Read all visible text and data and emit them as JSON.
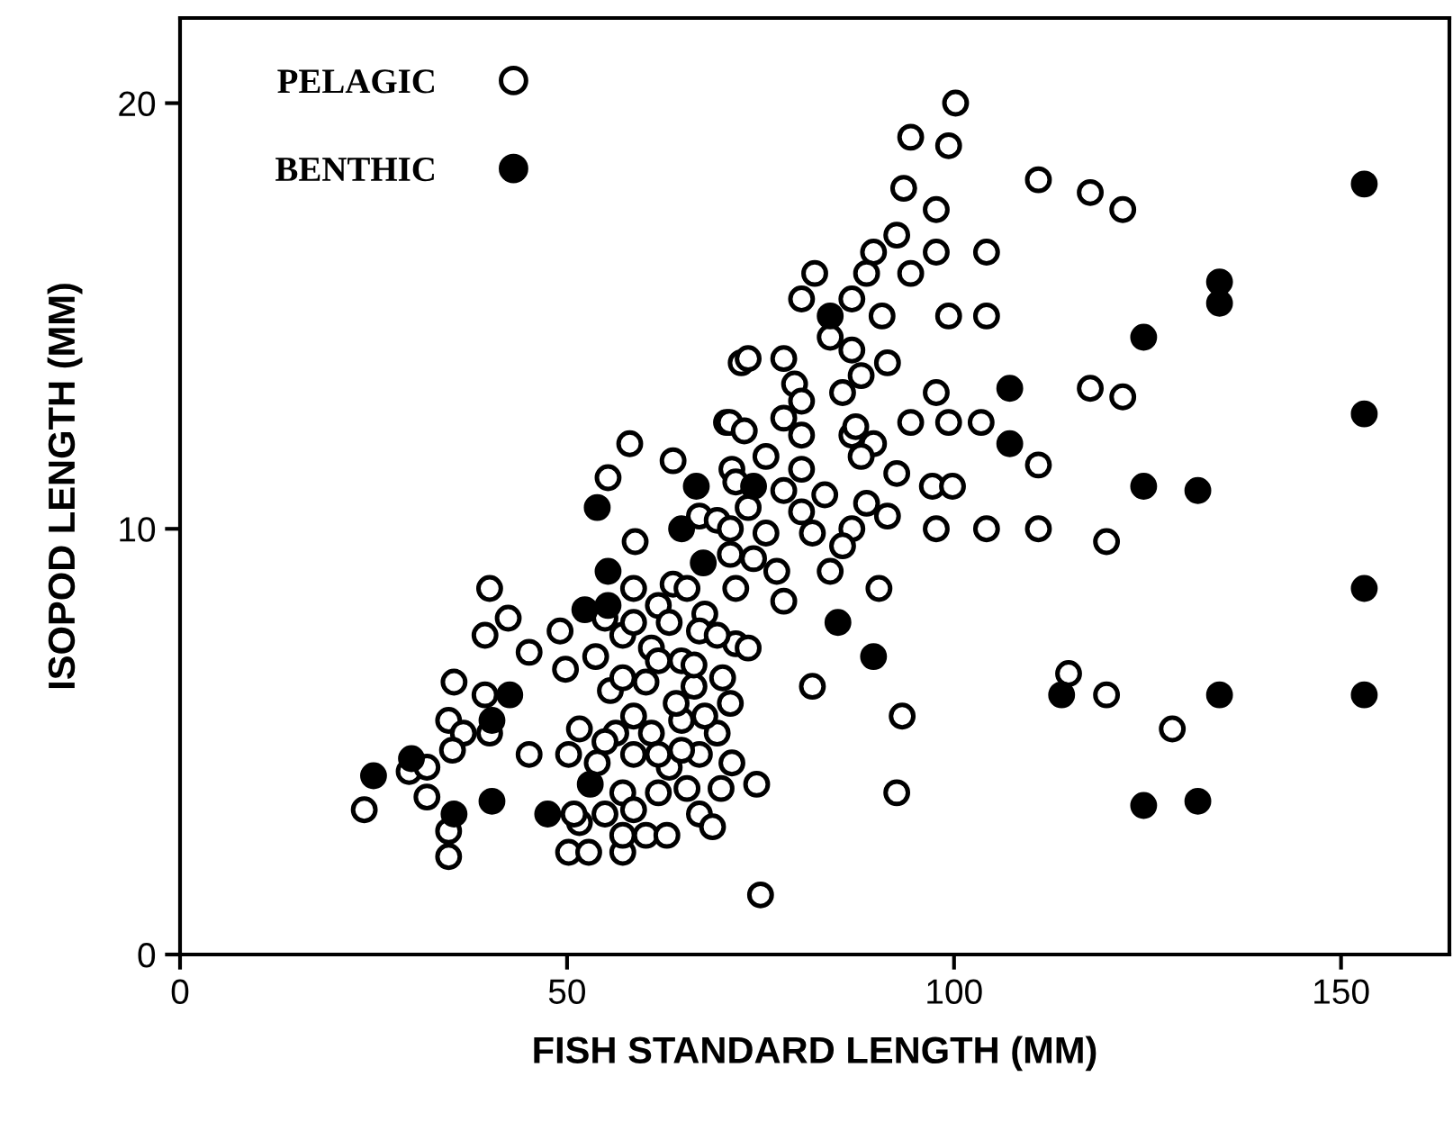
{
  "chart_data": {
    "type": "scatter",
    "xlabel": "FISH STANDARD LENGTH (MM)",
    "ylabel": "ISOPOD LENGTH (MM)",
    "xlim": [
      0,
      164
    ],
    "ylim": [
      0,
      22
    ],
    "xticks": [
      0,
      50,
      100,
      150
    ],
    "yticks": [
      0,
      10,
      20
    ],
    "grid": false,
    "legend": "top left",
    "marker": "circle",
    "series": [
      {
        "name": "PELAGIC",
        "color": "#ffffff",
        "x": [
          100.2,
          94.4,
          99.3,
          93.5,
          110.9,
          117.6,
          121.8,
          97.7,
          92.6,
          89.6,
          97.7,
          104.2,
          94.4,
          88.7,
          82.0,
          80.3,
          86.8,
          99.3,
          104.2,
          90.7,
          84.0,
          72.5,
          78.0,
          79.4,
          86.8,
          91.4,
          88.0,
          85.6,
          97.7,
          117.6,
          121.8,
          94.4,
          99.3,
          103.5,
          89.6,
          86.8,
          80.3,
          70.6,
          110.9,
          92.6,
          97.2,
          99.8,
          83.3,
          91.4,
          97.7,
          104.2,
          110.9,
          119.7,
          86.8,
          77.1,
          84.0,
          90.3,
          78.0,
          71.8,
          114.8,
          119.7,
          128.2,
          93.3,
          92.6,
          75.0,
          81.7,
          73.4,
          58.1,
          55.3,
          63.7,
          58.8,
          71.0,
          71.3,
          67.1,
          69.4,
          40.0,
          42.4,
          39.4,
          45.1,
          49.1,
          58.6,
          63.7,
          67.8,
          71.8,
          73.4,
          35.4,
          39.4,
          34.7,
          36.6,
          35.2,
          40.0,
          45.1,
          50.2,
          49.8,
          53.7,
          57.2,
          60.9,
          64.8,
          55.6,
          60.2,
          66.4,
          71.1,
          51.6,
          56.3,
          60.9,
          64.8,
          69.4,
          53.9,
          58.6,
          63.2,
          67.1,
          71.3,
          74.5,
          57.2,
          61.8,
          65.5,
          69.9,
          29.6,
          31.9,
          23.8,
          31.9,
          34.7,
          34.7,
          50.2,
          52.8,
          57.2,
          57.2,
          60.2,
          62.9,
          51.6,
          50.9,
          67.1,
          68.8,
          54.9,
          58.6,
          65.5,
          61.8,
          58.6,
          63.2,
          67.1,
          54.9,
          69.4,
          61.8,
          66.4,
          70.1,
          57.2,
          64.1,
          58.6,
          67.8,
          61.8,
          64.8,
          54.9,
          72.9,
          78.0,
          80.3,
          75.7,
          80.3,
          71.8,
          78.0,
          73.4,
          80.3,
          71.1,
          75.7,
          81.7,
          71.1,
          74.1,
          85.6,
          88.7,
          88.0,
          87.3
        ],
        "values": [
          20.0,
          19.2,
          19.0,
          18.0,
          18.2,
          17.9,
          17.5,
          17.5,
          16.9,
          16.5,
          16.5,
          16.5,
          16.0,
          16.0,
          16.0,
          15.4,
          15.4,
          15.0,
          15.0,
          15.0,
          14.5,
          13.9,
          14.0,
          13.4,
          14.2,
          13.9,
          13.6,
          13.2,
          13.2,
          13.3,
          13.1,
          12.5,
          12.5,
          12.5,
          12.0,
          12.2,
          12.2,
          12.5,
          11.5,
          11.3,
          11.0,
          11.0,
          10.8,
          10.3,
          10.0,
          10.0,
          10.0,
          9.7,
          10.0,
          9.0,
          9.0,
          8.6,
          8.3,
          8.6,
          6.6,
          6.1,
          5.3,
          5.6,
          3.8,
          1.4,
          6.3,
          14.0,
          12.0,
          11.2,
          11.6,
          9.7,
          12.5,
          11.4,
          10.3,
          10.2,
          8.6,
          7.9,
          7.5,
          7.1,
          7.6,
          8.6,
          8.7,
          8.0,
          7.3,
          7.2,
          6.4,
          6.1,
          5.5,
          5.2,
          4.8,
          5.2,
          4.7,
          4.7,
          6.7,
          7.0,
          7.5,
          7.2,
          6.9,
          6.2,
          6.4,
          6.3,
          5.9,
          5.3,
          5.2,
          5.2,
          5.5,
          5.2,
          4.5,
          4.7,
          4.4,
          4.7,
          4.5,
          4.0,
          3.8,
          3.8,
          3.9,
          3.9,
          4.3,
          4.4,
          3.4,
          3.7,
          2.9,
          2.3,
          2.4,
          2.4,
          2.4,
          2.8,
          2.8,
          2.8,
          3.1,
          3.3,
          3.3,
          3.0,
          3.3,
          3.4,
          8.6,
          8.2,
          7.8,
          7.8,
          7.6,
          7.9,
          7.5,
          6.9,
          6.8,
          6.5,
          6.5,
          5.9,
          5.6,
          5.6,
          4.7,
          4.8,
          5.0,
          12.3,
          12.6,
          13.0,
          11.7,
          11.4,
          11.1,
          10.9,
          10.5,
          10.4,
          10.0,
          9.9,
          9.9,
          9.4,
          9.3,
          9.6,
          10.6,
          11.7,
          12.4
        ]
      },
      {
        "name": "BENTHIC",
        "color": "#000000",
        "x": [
          25.0,
          29.9,
          35.4,
          40.3,
          40.3,
          42.6,
          47.5,
          52.3,
          55.3,
          55.3,
          53.0,
          67.6,
          53.9,
          66.7,
          64.8,
          84.0,
          107.2,
          107.2,
          124.5,
          124.5,
          74.1,
          153,
          134.3,
          134.3,
          153,
          131.5,
          153,
          113.9,
          134.3,
          153,
          124.5,
          131.5,
          85.0,
          89.6
        ],
        "values": [
          4.2,
          4.6,
          3.3,
          3.6,
          5.5,
          6.1,
          3.3,
          8.1,
          8.2,
          9.0,
          4.0,
          9.2,
          10.5,
          11.0,
          10.0,
          15.0,
          13.3,
          12.0,
          14.5,
          11.0,
          11.0,
          18.1,
          15.8,
          15.3,
          12.7,
          10.9,
          8.6,
          6.1,
          6.1,
          6.1,
          3.5,
          3.6,
          7.8,
          7.0
        ]
      }
    ]
  }
}
